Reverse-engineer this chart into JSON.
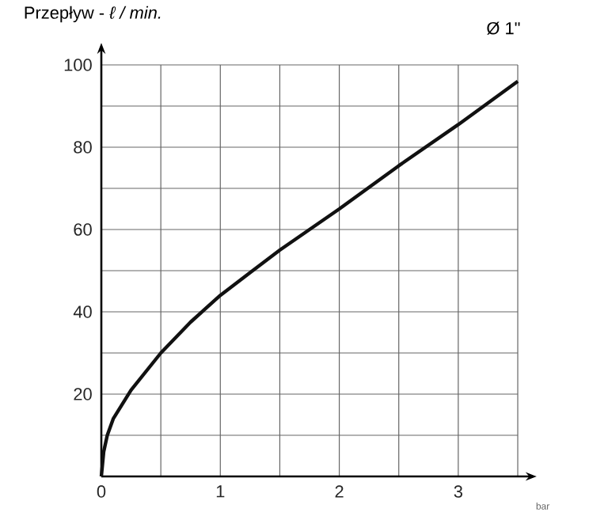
{
  "chart_data": {
    "type": "line",
    "ylabel": "Przepływ - *ℓ / min.*",
    "xlabel": "bar",
    "annotations": [
      "Ø 1\""
    ],
    "x": [
      0,
      0.02,
      0.05,
      0.1,
      0.25,
      0.5,
      0.75,
      1,
      1.25,
      1.5,
      1.75,
      2,
      2.5,
      3,
      3.5
    ],
    "series": [
      {
        "color": "#111111",
        "values": [
          0,
          6,
          10,
          14,
          21,
          30,
          37.5,
          44,
          49.5,
          55,
          60,
          65,
          75.5,
          85.5,
          96
        ]
      }
    ],
    "xlim": [
      0,
      3.5
    ],
    "ylim": [
      0,
      100
    ],
    "xticks": [
      0,
      {
        "value": 0.5,
        "label": null
      },
      1,
      {
        "value": 1.5,
        "label": null
      },
      2,
      {
        "value": 2.5,
        "label": null
      },
      3,
      {
        "value": 3.5,
        "label": null
      }
    ],
    "yticks": [
      {
        "value": 0,
        "label": null
      },
      {
        "value": 10,
        "label": null
      },
      20,
      {
        "value": 30,
        "label": null
      },
      40,
      {
        "value": 50,
        "label": null
      },
      60,
      {
        "value": 70,
        "label": null
      },
      80,
      {
        "value": 90,
        "label": null
      },
      100
    ],
    "grid": true,
    "marker": "none",
    "line_style": "solid"
  }
}
